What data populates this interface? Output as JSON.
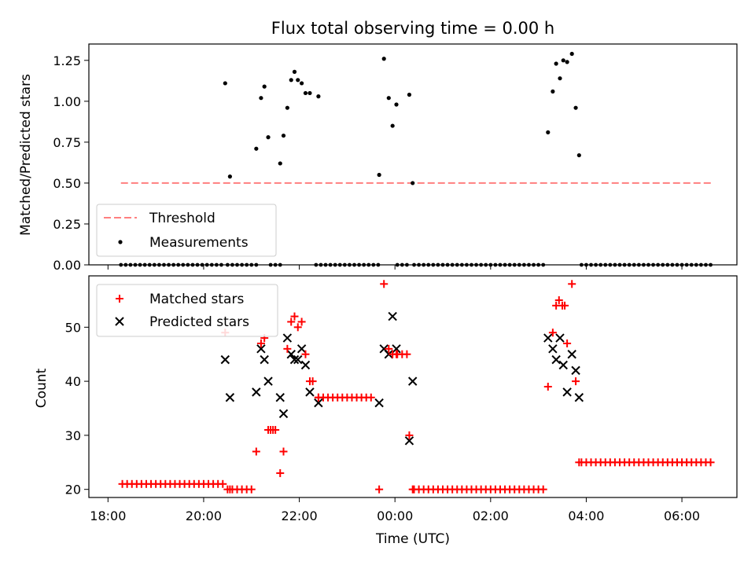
{
  "chart_data": [
    {
      "type": "scatter",
      "title": "Flux total observing time = 0.00 h",
      "xlabel": "",
      "ylabel": "Matched/Predicted stars",
      "ylim": [
        0.0,
        1.35
      ],
      "yticks": [
        "0.00",
        "0.25",
        "0.50",
        "0.75",
        "1.00",
        "1.25"
      ],
      "x_time_range_hours": [
        17.6,
        31.15
      ],
      "grid": false,
      "legend_position": "lower-left",
      "threshold": {
        "name": "Threshold",
        "value": 0.5,
        "x_range": [
          18.27,
          30.62
        ],
        "color": "#ff7f7f"
      },
      "series": [
        {
          "name": "Measurements",
          "color": "#000000",
          "points": [
            [
              20.45,
              1.11
            ],
            [
              20.55,
              0.54
            ],
            [
              21.1,
              0.71
            ],
            [
              21.2,
              1.02
            ],
            [
              21.27,
              1.09
            ],
            [
              21.35,
              0.78
            ],
            [
              21.6,
              0.62
            ],
            [
              21.67,
              0.79
            ],
            [
              21.75,
              0.96
            ],
            [
              21.83,
              1.13
            ],
            [
              21.9,
              1.18
            ],
            [
              21.97,
              1.13
            ],
            [
              22.05,
              1.11
            ],
            [
              22.13,
              1.05
            ],
            [
              22.22,
              1.05
            ],
            [
              22.4,
              1.03
            ],
            [
              23.67,
              0.55
            ],
            [
              23.77,
              1.26
            ],
            [
              23.87,
              1.02
            ],
            [
              23.95,
              0.85
            ],
            [
              24.03,
              0.98
            ],
            [
              24.3,
              1.04
            ],
            [
              24.37,
              0.5
            ],
            [
              27.2,
              0.81
            ],
            [
              27.3,
              1.06
            ],
            [
              27.37,
              1.23
            ],
            [
              27.45,
              1.14
            ],
            [
              27.52,
              1.25
            ],
            [
              27.6,
              1.24
            ],
            [
              27.7,
              1.29
            ],
            [
              27.78,
              0.96
            ],
            [
              27.85,
              0.67
            ]
          ]
        }
      ],
      "zero_value_segments": [
        [
          18.27,
          20.4
        ],
        [
          20.5,
          21.1
        ],
        [
          21.4,
          21.6
        ],
        [
          22.35,
          23.65
        ],
        [
          24.05,
          24.3
        ],
        [
          24.4,
          27.15
        ],
        [
          27.9,
          30.62
        ]
      ]
    },
    {
      "type": "scatter",
      "title": "",
      "xlabel": "Time (UTC)",
      "ylabel": "Count",
      "ylim": [
        18.5,
        59.5
      ],
      "yticks": [
        "20",
        "30",
        "40",
        "50"
      ],
      "xticks": [
        "18:00",
        "20:00",
        "22:00",
        "00:00",
        "02:00",
        "04:00",
        "06:00"
      ],
      "xtick_hours": [
        18,
        20,
        22,
        24,
        26,
        28,
        30
      ],
      "grid": false,
      "legend_position": "top-left",
      "series": [
        {
          "name": "Matched stars",
          "marker": "plus",
          "color": "#ff0000",
          "points": [
            [
              20.45,
              49
            ],
            [
              20.55,
              20
            ],
            [
              21.1,
              27
            ],
            [
              21.2,
              47
            ],
            [
              21.27,
              48
            ],
            [
              21.35,
              31
            ],
            [
              21.4,
              31
            ],
            [
              21.45,
              31
            ],
            [
              21.5,
              31
            ],
            [
              21.6,
              23
            ],
            [
              21.67,
              27
            ],
            [
              21.75,
              46
            ],
            [
              21.83,
              51
            ],
            [
              21.9,
              52
            ],
            [
              21.97,
              50
            ],
            [
              22.05,
              51
            ],
            [
              22.13,
              45
            ],
            [
              22.22,
              40
            ],
            [
              22.28,
              40
            ],
            [
              22.4,
              37
            ],
            [
              23.67,
              20
            ],
            [
              23.77,
              58
            ],
            [
              23.87,
              46
            ],
            [
              23.95,
              45
            ],
            [
              24.03,
              45
            ],
            [
              24.3,
              30
            ],
            [
              24.37,
              20
            ],
            [
              27.2,
              39
            ],
            [
              27.3,
              49
            ],
            [
              27.37,
              54
            ],
            [
              27.43,
              55
            ],
            [
              27.5,
              54
            ],
            [
              27.55,
              54
            ],
            [
              27.6,
              47
            ],
            [
              27.7,
              58
            ],
            [
              27.78,
              40
            ],
            [
              27.85,
              25
            ]
          ],
          "constant_runs": [
            {
              "x_range": [
                18.3,
                20.4
              ],
              "value": 21
            },
            {
              "x_range": [
                20.5,
                21.05
              ],
              "value": 20
            },
            {
              "x_range": [
                22.4,
                23.55
              ],
              "value": 37
            },
            {
              "x_range": [
                24.05,
                24.25
              ],
              "value": 45
            },
            {
              "x_range": [
                24.4,
                27.15
              ],
              "value": 20
            },
            {
              "x_range": [
                27.9,
                30.62
              ],
              "value": 25
            }
          ]
        },
        {
          "name": "Predicted stars",
          "marker": "cross",
          "color": "#000000",
          "points": [
            [
              20.45,
              44
            ],
            [
              20.55,
              37
            ],
            [
              21.1,
              38
            ],
            [
              21.2,
              46
            ],
            [
              21.27,
              44
            ],
            [
              21.35,
              40
            ],
            [
              21.6,
              37
            ],
            [
              21.67,
              34
            ],
            [
              21.75,
              48
            ],
            [
              21.83,
              45
            ],
            [
              21.9,
              44
            ],
            [
              21.97,
              44
            ],
            [
              22.05,
              46
            ],
            [
              22.13,
              43
            ],
            [
              22.22,
              38
            ],
            [
              22.4,
              36
            ],
            [
              23.67,
              36
            ],
            [
              23.77,
              46
            ],
            [
              23.87,
              45
            ],
            [
              23.95,
              52
            ],
            [
              24.03,
              46
            ],
            [
              24.3,
              29
            ],
            [
              24.37,
              40
            ],
            [
              27.2,
              48
            ],
            [
              27.3,
              46
            ],
            [
              27.37,
              44
            ],
            [
              27.45,
              48
            ],
            [
              27.52,
              43
            ],
            [
              27.6,
              38
            ],
            [
              27.7,
              45
            ],
            [
              27.78,
              42
            ],
            [
              27.85,
              37
            ]
          ]
        }
      ]
    }
  ]
}
